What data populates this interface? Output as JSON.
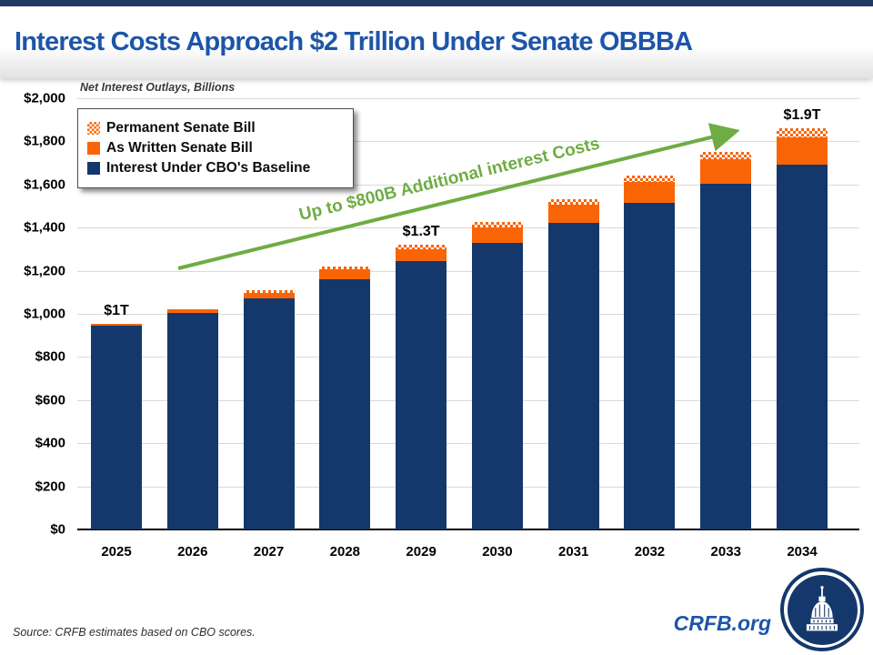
{
  "title": "Interest Costs Approach $2 Trillion Under Senate OBBBA",
  "subtitle": "Net Interest Outlays, Billions",
  "source_note": "Source: CRFB estimates based on CBO scores.",
  "footer_url": "CRFB.org",
  "logo": {
    "icon": "capitol-dome-icon"
  },
  "colors": {
    "navy": "#14386b",
    "orange": "#f96506",
    "green": "#6fac44",
    "title_blue": "#1d55a8",
    "gridline": "#d9d9d9",
    "topbar": "#1f3864"
  },
  "legend": {
    "items": [
      {
        "label": "Permanent Senate Bill",
        "swatch": "checker"
      },
      {
        "label": "As Written Senate Bill",
        "swatch": "orange"
      },
      {
        "label": "Interest Under CBO's Baseline",
        "swatch": "navy"
      }
    ]
  },
  "annotation_arrow": {
    "text": "Up to $800B Additional interest Costs"
  },
  "chart_data": {
    "type": "bar",
    "stacked": true,
    "title": "Interest Costs Approach $2 Trillion Under Senate OBBBA",
    "ylabel": "Net Interest Outlays, Billions",
    "xlabel": "",
    "ylim": [
      0,
      2000
    ],
    "grid": true,
    "legend_position": "top-left",
    "categories": [
      "2025",
      "2026",
      "2027",
      "2028",
      "2029",
      "2030",
      "2031",
      "2032",
      "2033",
      "2034"
    ],
    "series": [
      {
        "name": "Interest Under CBO's Baseline",
        "style": "navy",
        "values": [
          945,
          1005,
          1070,
          1160,
          1245,
          1330,
          1420,
          1515,
          1605,
          1690
        ]
      },
      {
        "name": "As Written Senate Bill",
        "style": "orange",
        "values": [
          10,
          15,
          28,
          48,
          55,
          70,
          85,
          95,
          112,
          128
        ]
      },
      {
        "name": "Permanent Senate Bill",
        "style": "checker",
        "values": [
          0,
          0,
          10,
          12,
          20,
          25,
          25,
          30,
          35,
          42
        ]
      }
    ],
    "bar_total_labels": [
      {
        "category": "2025",
        "label": "$1T"
      },
      {
        "category": "2029",
        "label": "$1.3T"
      },
      {
        "category": "2034",
        "label": "$1.9T"
      }
    ],
    "y_ticks": [
      {
        "value": 0,
        "label": "$0"
      },
      {
        "value": 200,
        "label": "$200"
      },
      {
        "value": 400,
        "label": "$400"
      },
      {
        "value": 600,
        "label": "$600"
      },
      {
        "value": 800,
        "label": "$800"
      },
      {
        "value": 1000,
        "label": "$1,000"
      },
      {
        "value": 1200,
        "label": "$1,200"
      },
      {
        "value": 1400,
        "label": "$1,400"
      },
      {
        "value": 1600,
        "label": "$1,600"
      },
      {
        "value": 1800,
        "label": "$1,800"
      },
      {
        "value": 2000,
        "label": "$2,000"
      }
    ]
  }
}
